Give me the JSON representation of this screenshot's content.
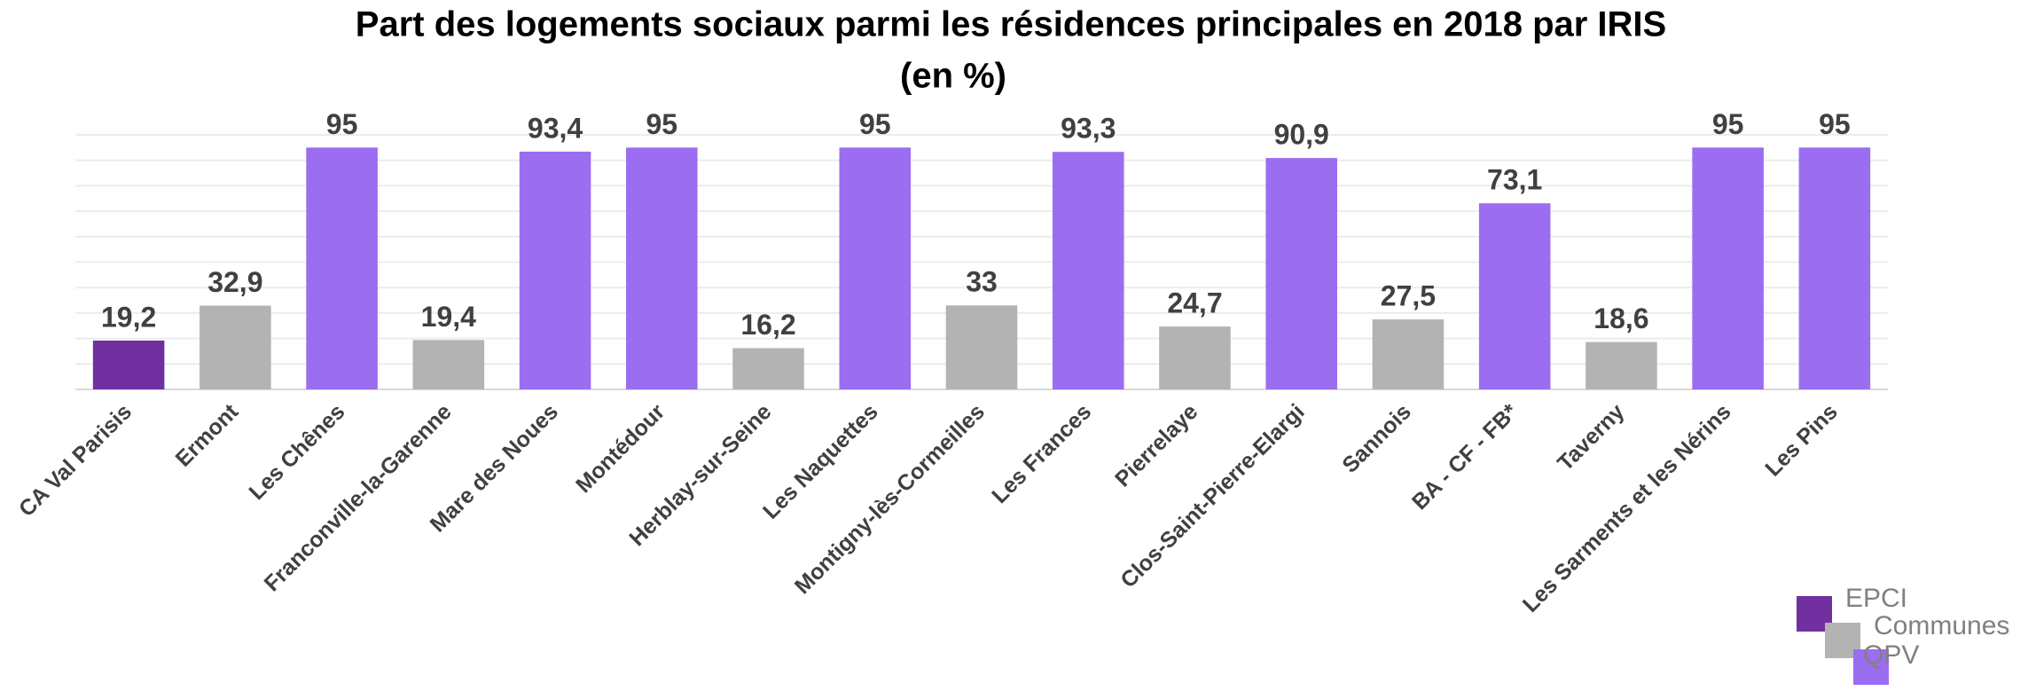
{
  "chart_data": {
    "type": "bar",
    "title": "Part des logements sociaux parmi les résidences principales en 2018 par IRIS",
    "subtitle": "(en %)",
    "categories": [
      "CA Val Parisis",
      "Ermont",
      "Les Chênes",
      "Franconville-la-Garenne",
      "Mare des Noues",
      "Montédour",
      "Herblay-sur-Seine",
      "Les Naquettes",
      "Montigny-lès-Cormeilles",
      "Les Frances",
      "Pierrelaye",
      "Clos-Saint-Pierre-Elargi",
      "Sannois",
      "BA - CF - FB*",
      "Taverny",
      "Les Sarments et les Nérins",
      "Les Pins"
    ],
    "series": [
      {
        "name": "EPCI",
        "color": "#7030a0",
        "values": [
          19.2,
          null,
          null,
          null,
          null,
          null,
          null,
          null,
          null,
          null,
          null,
          null,
          null,
          null,
          null,
          null,
          null
        ],
        "value_labels": [
          "19,2",
          null,
          null,
          null,
          null,
          null,
          null,
          null,
          null,
          null,
          null,
          null,
          null,
          null,
          null,
          null,
          null
        ]
      },
      {
        "name": "Communes",
        "color": "#b3b3b3",
        "values": [
          null,
          32.9,
          null,
          19.4,
          null,
          null,
          16.2,
          null,
          33,
          null,
          24.7,
          null,
          27.5,
          null,
          18.6,
          null,
          null
        ],
        "value_labels": [
          null,
          "32,9",
          null,
          "19,4",
          null,
          null,
          "16,2",
          null,
          "33",
          null,
          "24,7",
          null,
          "27,5",
          null,
          "18,6",
          null,
          null
        ]
      },
      {
        "name": "QPV",
        "color": "#9b6df0",
        "values": [
          null,
          null,
          95,
          null,
          93.4,
          95,
          null,
          95,
          null,
          93.3,
          null,
          90.9,
          null,
          73.1,
          null,
          95,
          95
        ],
        "value_labels": [
          null,
          null,
          "95",
          null,
          "93,4",
          "95",
          null,
          "95",
          null,
          "93,3",
          null,
          "90,9",
          null,
          "73,1",
          null,
          "95",
          "95"
        ]
      }
    ],
    "ylim": [
      0,
      100
    ],
    "yticks": [
      0,
      10,
      20,
      30,
      40,
      50,
      60,
      70,
      80,
      90,
      100
    ],
    "grid": true
  }
}
